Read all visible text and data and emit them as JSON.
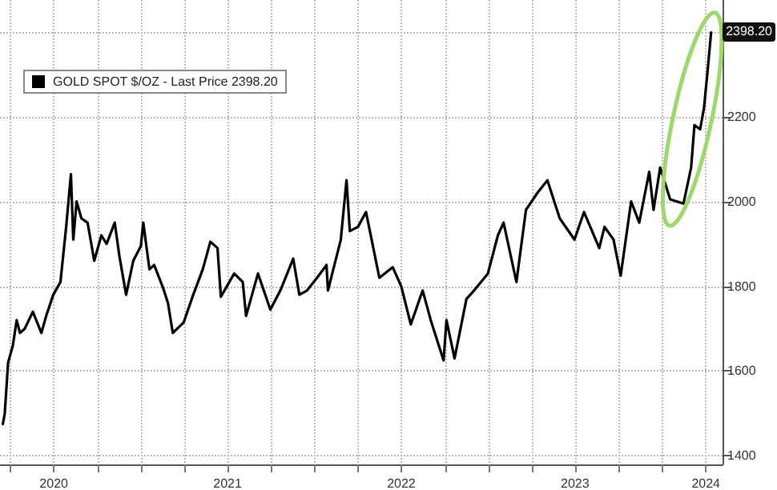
{
  "chart_data": {
    "type": "line",
    "x": [
      "2020-03-16",
      "2020-03-20",
      "2020-03-27",
      "2020-04-06",
      "2020-04-14",
      "2020-04-21",
      "2020-05-01",
      "2020-05-18",
      "2020-06-05",
      "2020-06-15",
      "2020-06-30",
      "2020-07-15",
      "2020-07-27",
      "2020-08-06",
      "2020-08-11",
      "2020-08-18",
      "2020-08-28",
      "2020-09-10",
      "2020-09-24",
      "2020-10-09",
      "2020-10-20",
      "2020-11-06",
      "2020-11-16",
      "2020-11-30",
      "2020-12-15",
      "2020-12-31",
      "2021-01-05",
      "2021-01-18",
      "2021-01-28",
      "2021-02-16",
      "2021-02-26",
      "2021-03-08",
      "2021-03-31",
      "2021-04-20",
      "2021-05-10",
      "2021-05-26",
      "2021-06-10",
      "2021-06-17",
      "2021-07-15",
      "2021-08-02",
      "2021-08-09",
      "2021-08-24",
      "2021-09-03",
      "2021-09-29",
      "2021-10-20",
      "2021-11-16",
      "2021-11-29",
      "2021-12-15",
      "2022-01-05",
      "2022-01-25",
      "2022-01-28",
      "2022-02-24",
      "2022-03-08",
      "2022-03-15",
      "2022-04-01",
      "2022-04-18",
      "2022-05-16",
      "2022-06-13",
      "2022-07-01",
      "2022-07-21",
      "2022-08-15",
      "2022-09-01",
      "2022-09-28",
      "2022-10-04",
      "2022-10-21",
      "2022-11-15",
      "2022-12-01",
      "2022-12-30",
      "2023-01-20",
      "2023-02-01",
      "2023-02-28",
      "2023-03-20",
      "2023-04-13",
      "2023-05-04",
      "2023-05-30",
      "2023-06-30",
      "2023-07-20",
      "2023-08-21",
      "2023-09-01",
      "2023-09-20",
      "2023-10-05",
      "2023-10-27",
      "2023-11-13",
      "2023-12-04",
      "2023-12-13",
      "2023-12-27",
      "2024-01-17",
      "2024-02-14",
      "2024-03-01",
      "2024-03-08",
      "2024-03-20",
      "2024-03-28",
      "2024-04-04",
      "2024-04-12"
    ],
    "series": [
      {
        "name": "GOLD SPOT $/OZ - Last Price 2398.20",
        "color": "#000000",
        "values": [
          1475,
          1500,
          1620,
          1660,
          1720,
          1690,
          1700,
          1740,
          1690,
          1730,
          1780,
          1810,
          1940,
          2064,
          1910,
          2000,
          1960,
          1950,
          1860,
          1920,
          1900,
          1950,
          1870,
          1780,
          1860,
          1895,
          1950,
          1840,
          1850,
          1795,
          1760,
          1690,
          1715,
          1780,
          1840,
          1905,
          1890,
          1775,
          1830,
          1810,
          1730,
          1790,
          1830,
          1745,
          1790,
          1865,
          1780,
          1790,
          1820,
          1850,
          1790,
          1910,
          2050,
          1930,
          1940,
          1975,
          1820,
          1845,
          1800,
          1710,
          1790,
          1720,
          1625,
          1720,
          1630,
          1770,
          1790,
          1830,
          1920,
          1950,
          1810,
          1980,
          2020,
          2050,
          1960,
          1910,
          1975,
          1890,
          1940,
          1910,
          1825,
          2000,
          1950,
          2070,
          1980,
          2080,
          2005,
          1995,
          2080,
          2180,
          2170,
          2220,
          2300,
          2398.2
        ]
      }
    ],
    "xlim": [
      "2020-03-10",
      "2024-05-06"
    ],
    "xticks": [
      {
        "value": "2020-04-01",
        "label": null
      },
      {
        "value": "2020-07-01",
        "label": "2020"
      },
      {
        "value": "2020-10-01",
        "label": null
      },
      {
        "value": "2021-01-01",
        "label": null
      },
      {
        "value": "2021-04-01",
        "label": null
      },
      {
        "value": "2021-07-01",
        "label": "2021"
      },
      {
        "value": "2021-10-01",
        "label": null
      },
      {
        "value": "2022-01-01",
        "label": null
      },
      {
        "value": "2022-04-01",
        "label": null
      },
      {
        "value": "2022-07-01",
        "label": "2022"
      },
      {
        "value": "2022-10-01",
        "label": null
      },
      {
        "value": "2023-01-01",
        "label": null
      },
      {
        "value": "2023-04-01",
        "label": null
      },
      {
        "value": "2023-07-01",
        "label": "2023"
      },
      {
        "value": "2023-10-01",
        "label": null
      },
      {
        "value": "2024-01-01",
        "label": null
      },
      {
        "value": "2024-04-01",
        "label": "2024"
      }
    ],
    "ylim": [
      1380,
      2475
    ],
    "yticks": [
      1400,
      1600,
      1800,
      2000,
      2200,
      {
        "value": 2400,
        "label": null
      }
    ],
    "annotations": [
      {
        "text": "2398.20",
        "y": 2398.2
      }
    ],
    "grid": true,
    "legend": "top left",
    "marker": "none",
    "line_style": "solid"
  }
}
